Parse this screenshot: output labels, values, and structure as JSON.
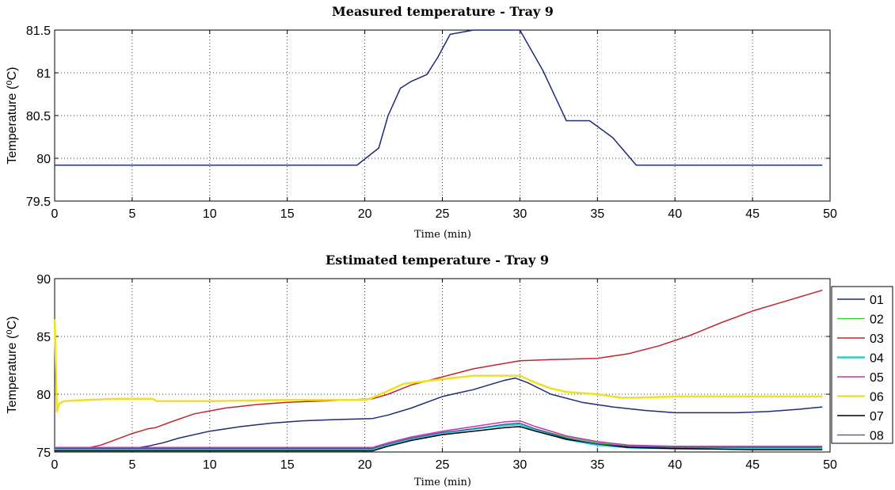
{
  "chart_data": [
    {
      "type": "line",
      "title": "Measured temperature -  Tray 9",
      "xlabel": "Time (min)",
      "ylabel": "Temperature (⁰C)",
      "xlim": [
        0,
        50
      ],
      "ylim": [
        79.5,
        81.5
      ],
      "xticks": [
        0,
        5,
        10,
        15,
        20,
        25,
        30,
        35,
        40,
        45,
        50
      ],
      "yticks": [
        79.5,
        80,
        80.5,
        81,
        81.5
      ],
      "ytick_labels": [
        "79.5",
        "80",
        "80.5",
        "81",
        "81.5"
      ],
      "grid": true,
      "series": [
        {
          "name": "Measured",
          "color": "#1f2a7a",
          "x": [
            0,
            19.5,
            20.9,
            21.5,
            22.3,
            23,
            24,
            24.7,
            25.5,
            27,
            30,
            31.5,
            33,
            34.5,
            36,
            37.5,
            49.5
          ],
          "y": [
            79.92,
            79.92,
            80.12,
            80.5,
            80.82,
            80.9,
            80.98,
            81.18,
            81.45,
            81.5,
            81.5,
            81.02,
            80.44,
            80.44,
            80.24,
            79.92,
            79.92
          ]
        }
      ]
    },
    {
      "type": "line",
      "title": "Estimated temperature -  Tray 9",
      "xlabel": "Time (min)",
      "ylabel": "Temperature (⁰C)",
      "xlim": [
        0,
        50
      ],
      "ylim": [
        75,
        90
      ],
      "xticks": [
        0,
        5,
        10,
        15,
        20,
        25,
        30,
        35,
        40,
        45,
        50
      ],
      "yticks": [
        75,
        80,
        85,
        90
      ],
      "ytick_labels": [
        "75",
        "80",
        "85",
        "90"
      ],
      "grid": true,
      "legend": "right",
      "series": [
        {
          "name": "01",
          "color": "#1f2a7a",
          "width": 1.5,
          "x": [
            0,
            5,
            6,
            7,
            8,
            10,
            12,
            14,
            16,
            18,
            20.5,
            21.5,
            23,
            25,
            26,
            27,
            28,
            29,
            29.7,
            30.5,
            32,
            34,
            36,
            38,
            40,
            42,
            44,
            46,
            48,
            49.5
          ],
          "y": [
            75.2,
            75.3,
            75.5,
            75.8,
            76.2,
            76.8,
            77.2,
            77.5,
            77.7,
            77.8,
            77.9,
            78.2,
            78.8,
            79.8,
            80.1,
            80.4,
            80.8,
            81.2,
            81.4,
            81.0,
            80.0,
            79.3,
            78.9,
            78.6,
            78.4,
            78.4,
            78.4,
            78.5,
            78.7,
            78.9
          ]
        },
        {
          "name": "02",
          "color": "#33cc33",
          "width": 1.2,
          "x": [
            0,
            20.5,
            21.5,
            23,
            25,
            27,
            29,
            30,
            31,
            33,
            35,
            37,
            40,
            45,
            49.5
          ],
          "y": [
            75.2,
            75.2,
            75.6,
            76.1,
            76.6,
            77.0,
            77.3,
            77.4,
            77.0,
            76.3,
            75.8,
            75.5,
            75.4,
            75.3,
            75.3
          ]
        },
        {
          "name": "03",
          "color": "#c0272d",
          "width": 1.5,
          "x": [
            0,
            2,
            3,
            4,
            5,
            6,
            6.5,
            7.5,
            9,
            11,
            13,
            15,
            17,
            19,
            20.5,
            21.5,
            23,
            25,
            27,
            30,
            32,
            35,
            37,
            39,
            41,
            43,
            45,
            47,
            49.5
          ],
          "y": [
            75.2,
            75.3,
            75.6,
            76.1,
            76.6,
            77.0,
            77.1,
            77.6,
            78.3,
            78.8,
            79.1,
            79.3,
            79.4,
            79.5,
            79.6,
            80.0,
            80.8,
            81.5,
            82.2,
            82.9,
            83.0,
            83.1,
            83.5,
            84.2,
            85.1,
            86.2,
            87.2,
            88.0,
            89.0
          ]
        },
        {
          "name": "04",
          "color": "#33cccc",
          "width": 2.5,
          "x": [
            0,
            20.5,
            21.5,
            23,
            25,
            27,
            29,
            30,
            31,
            33,
            35,
            37,
            40,
            45,
            49.5
          ],
          "y": [
            75.2,
            75.2,
            75.6,
            76.1,
            76.6,
            77.0,
            77.3,
            77.4,
            76.9,
            76.1,
            75.6,
            75.4,
            75.3,
            75.3,
            75.3
          ]
        },
        {
          "name": "05",
          "color": "#cc33aa",
          "width": 1.5,
          "x": [
            0,
            20.5,
            21.5,
            23,
            25,
            27,
            29,
            30,
            31,
            33,
            35,
            37,
            40,
            45,
            49.5
          ],
          "y": [
            75.4,
            75.4,
            75.8,
            76.3,
            76.8,
            77.2,
            77.6,
            77.7,
            77.2,
            76.4,
            75.9,
            75.6,
            75.5,
            75.5,
            75.5
          ]
        },
        {
          "name": "06",
          "color": "#f0e020",
          "width": 2.5,
          "x": [
            0,
            0.15,
            0.3,
            0.6,
            2,
            4,
            6.3,
            6.6,
            10,
            15,
            20,
            20.5,
            21.5,
            22.5,
            25,
            27,
            30,
            31,
            32,
            33,
            35,
            36.5,
            37.5,
            40,
            45,
            49.5
          ],
          "y": [
            86.5,
            78.5,
            79.2,
            79.4,
            79.5,
            79.6,
            79.6,
            79.4,
            79.4,
            79.5,
            79.5,
            79.7,
            80.3,
            80.9,
            81.3,
            81.6,
            81.6,
            81.0,
            80.5,
            80.2,
            80.0,
            79.7,
            79.7,
            79.8,
            79.8,
            79.8
          ]
        },
        {
          "name": "07",
          "color": "#000000",
          "width": 1.5,
          "x": [
            0,
            20.5,
            21.5,
            23,
            25,
            27,
            29,
            30,
            31,
            33,
            35,
            37,
            40,
            45,
            49.5
          ],
          "y": [
            75.1,
            75.1,
            75.5,
            76.0,
            76.5,
            76.8,
            77.1,
            77.2,
            76.8,
            76.1,
            75.7,
            75.4,
            75.3,
            75.2,
            75.2
          ]
        },
        {
          "name": "08",
          "color": "#3a4fa0",
          "width": 1.2,
          "x": [
            0,
            20.5,
            21.5,
            23,
            25,
            27,
            29,
            30,
            31,
            33,
            35,
            37,
            40,
            45,
            49.5
          ],
          "y": [
            75.3,
            75.3,
            75.7,
            76.2,
            76.7,
            77.0,
            77.4,
            77.5,
            77.0,
            76.2,
            75.7,
            75.5,
            75.4,
            75.4,
            75.4
          ]
        }
      ]
    }
  ]
}
